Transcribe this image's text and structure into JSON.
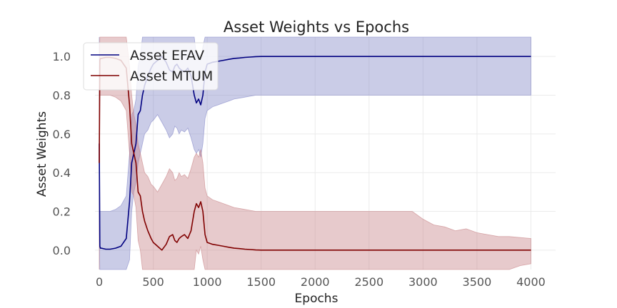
{
  "chart_data": {
    "type": "line",
    "title": "Asset Weights vs Epochs",
    "xlabel": "Epochs",
    "ylabel": "Asset Weights",
    "xlim": [
      -40,
      4030
    ],
    "ylim": [
      -0.1,
      1.1
    ],
    "xticks": [
      0,
      500,
      1000,
      1500,
      2000,
      2500,
      3000,
      3500,
      4000
    ],
    "yticks": [
      0.0,
      0.2,
      0.4,
      0.6,
      0.8,
      1.0
    ],
    "xtick_labels": [
      "0",
      "500",
      "1000",
      "1500",
      "2000",
      "2500",
      "3000",
      "3500",
      "4000"
    ],
    "ytick_labels": [
      "0.0",
      "0.2",
      "0.4",
      "0.6",
      "0.8",
      "1.0"
    ],
    "grid": true,
    "legend_position": "top-left",
    "series": [
      {
        "name": "Asset EFAV",
        "color": "#000080",
        "band_color": "#7b7fc4",
        "x": [
          0,
          5,
          10,
          20,
          60,
          100,
          150,
          200,
          250,
          280,
          300,
          320,
          340,
          360,
          380,
          400,
          420,
          450,
          480,
          500,
          540,
          580,
          620,
          650,
          680,
          700,
          720,
          740,
          760,
          790,
          820,
          850,
          880,
          900,
          920,
          940,
          960,
          980,
          1000,
          1050,
          1100,
          1150,
          1200,
          1250,
          1300,
          1350,
          1400,
          1450,
          1500,
          2000,
          2500,
          3000,
          3500,
          4000
        ],
        "mean": [
          0.55,
          0.02,
          0.01,
          0.01,
          0.005,
          0.005,
          0.01,
          0.02,
          0.06,
          0.25,
          0.45,
          0.5,
          0.55,
          0.7,
          0.72,
          0.8,
          0.85,
          0.9,
          0.94,
          0.96,
          0.98,
          1.0,
          0.97,
          0.93,
          0.92,
          0.95,
          0.96,
          0.94,
          0.93,
          0.92,
          0.94,
          0.9,
          0.8,
          0.76,
          0.78,
          0.75,
          0.8,
          0.92,
          0.96,
          0.97,
          0.975,
          0.98,
          0.985,
          0.99,
          0.992,
          0.995,
          0.997,
          0.999,
          1.0,
          1.0,
          1.0,
          1.0,
          1.0,
          1.0
        ],
        "lower": [
          0.1,
          -0.1,
          -0.1,
          -0.1,
          -0.1,
          -0.1,
          -0.1,
          -0.1,
          -0.1,
          -0.05,
          0.2,
          0.3,
          0.35,
          0.45,
          0.5,
          0.55,
          0.6,
          0.62,
          0.66,
          0.67,
          0.7,
          0.66,
          0.62,
          0.58,
          0.6,
          0.64,
          0.63,
          0.6,
          0.62,
          0.61,
          0.63,
          0.58,
          0.52,
          0.5,
          0.52,
          0.48,
          0.55,
          0.68,
          0.72,
          0.74,
          0.75,
          0.76,
          0.77,
          0.78,
          0.785,
          0.79,
          0.795,
          0.8,
          0.8,
          0.8,
          0.8,
          0.8,
          0.8,
          0.8
        ],
        "upper": [
          1.1,
          0.2,
          0.2,
          0.2,
          0.2,
          0.2,
          0.21,
          0.23,
          0.28,
          0.5,
          0.7,
          0.72,
          0.78,
          0.95,
          1.0,
          1.1,
          1.1,
          1.1,
          1.1,
          1.1,
          1.1,
          1.1,
          1.1,
          1.1,
          1.1,
          1.1,
          1.1,
          1.1,
          1.1,
          1.1,
          1.1,
          1.1,
          1.1,
          1.0,
          1.02,
          0.98,
          1.05,
          1.1,
          1.1,
          1.1,
          1.1,
          1.1,
          1.1,
          1.1,
          1.1,
          1.1,
          1.1,
          1.1,
          1.1,
          1.1,
          1.1,
          1.1,
          1.1,
          1.1
        ]
      },
      {
        "name": "Asset MTUM",
        "color": "#800000",
        "band_color": "#c47b7f",
        "x": [
          0,
          5,
          10,
          20,
          60,
          100,
          150,
          200,
          250,
          280,
          300,
          320,
          340,
          360,
          380,
          400,
          420,
          450,
          480,
          500,
          540,
          580,
          620,
          650,
          680,
          700,
          720,
          740,
          760,
          790,
          820,
          850,
          880,
          900,
          920,
          940,
          960,
          980,
          1000,
          1050,
          1100,
          1150,
          1200,
          1250,
          1300,
          1350,
          1400,
          1450,
          1500,
          2000,
          2500,
          2900,
          3000,
          3100,
          3200,
          3300,
          3400,
          3500,
          3600,
          3700,
          3800,
          3900,
          4000
        ],
        "mean": [
          0.45,
          0.98,
          0.99,
          0.99,
          0.995,
          0.995,
          0.99,
          0.98,
          0.94,
          0.75,
          0.55,
          0.5,
          0.45,
          0.3,
          0.28,
          0.2,
          0.15,
          0.1,
          0.06,
          0.04,
          0.02,
          0.0,
          0.03,
          0.07,
          0.08,
          0.05,
          0.04,
          0.06,
          0.07,
          0.08,
          0.06,
          0.1,
          0.2,
          0.24,
          0.22,
          0.25,
          0.2,
          0.08,
          0.04,
          0.03,
          0.025,
          0.02,
          0.015,
          0.01,
          0.008,
          0.005,
          0.003,
          0.001,
          0.0,
          0.0,
          0.0,
          0.0,
          0.0,
          0.0,
          0.0,
          0.0,
          0.0,
          0.0,
          0.0,
          0.0,
          0.0,
          0.0,
          0.0
        ],
        "lower": [
          -0.1,
          0.8,
          0.8,
          0.8,
          0.8,
          0.8,
          0.79,
          0.77,
          0.72,
          0.5,
          0.3,
          0.28,
          0.22,
          0.05,
          0.0,
          -0.1,
          -0.1,
          -0.1,
          -0.1,
          -0.1,
          -0.1,
          -0.1,
          -0.1,
          -0.1,
          -0.1,
          -0.1,
          -0.1,
          -0.1,
          -0.1,
          -0.1,
          -0.1,
          -0.1,
          -0.1,
          0.0,
          -0.02,
          0.02,
          -0.05,
          -0.1,
          -0.1,
          -0.1,
          -0.1,
          -0.1,
          -0.1,
          -0.1,
          -0.1,
          -0.1,
          -0.1,
          -0.1,
          -0.1,
          -0.1,
          -0.1,
          -0.1,
          -0.1,
          -0.1,
          -0.1,
          -0.1,
          -0.1,
          -0.1,
          -0.1,
          -0.1,
          -0.1,
          -0.08,
          -0.07
        ],
        "upper": [
          0.9,
          1.1,
          1.1,
          1.1,
          1.1,
          1.1,
          1.1,
          1.1,
          1.1,
          0.95,
          0.8,
          0.7,
          0.65,
          0.55,
          0.5,
          0.45,
          0.4,
          0.38,
          0.34,
          0.33,
          0.3,
          0.34,
          0.38,
          0.42,
          0.4,
          0.36,
          0.37,
          0.4,
          0.38,
          0.39,
          0.37,
          0.42,
          0.48,
          0.5,
          0.48,
          0.52,
          0.45,
          0.32,
          0.28,
          0.26,
          0.25,
          0.24,
          0.23,
          0.22,
          0.215,
          0.21,
          0.205,
          0.2,
          0.2,
          0.2,
          0.2,
          0.2,
          0.16,
          0.13,
          0.12,
          0.1,
          0.11,
          0.09,
          0.08,
          0.07,
          0.07,
          0.065,
          0.06
        ]
      }
    ]
  }
}
